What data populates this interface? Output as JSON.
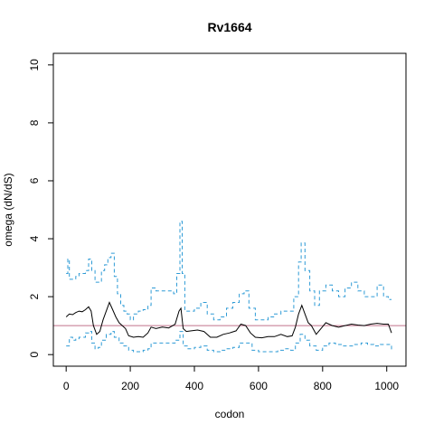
{
  "chart_data": {
    "type": "line",
    "title": "Rv1664",
    "xlabel": "codon",
    "ylabel": "omega (dN/dS)",
    "xlim": [
      -40,
      1060
    ],
    "ylim": [
      -0.4,
      10.4
    ],
    "xticks": [
      0,
      200,
      400,
      600,
      800,
      1000
    ],
    "yticks": [
      0,
      2,
      4,
      6,
      8,
      10
    ],
    "reference_line": {
      "y": 1,
      "color": "#c0708a"
    },
    "series": [
      {
        "role": "estimate",
        "color": "#000000",
        "dash": "solid",
        "points": [
          [
            0,
            1.3
          ],
          [
            10,
            1.4
          ],
          [
            20,
            1.38
          ],
          [
            30,
            1.45
          ],
          [
            40,
            1.5
          ],
          [
            50,
            1.48
          ],
          [
            60,
            1.55
          ],
          [
            70,
            1.65
          ],
          [
            78,
            1.5
          ],
          [
            85,
            1.0
          ],
          [
            95,
            0.7
          ],
          [
            105,
            0.8
          ],
          [
            115,
            1.2
          ],
          [
            125,
            1.5
          ],
          [
            135,
            1.8
          ],
          [
            145,
            1.55
          ],
          [
            155,
            1.3
          ],
          [
            165,
            1.1
          ],
          [
            175,
            1.0
          ],
          [
            185,
            0.9
          ],
          [
            195,
            0.65
          ],
          [
            210,
            0.6
          ],
          [
            225,
            0.62
          ],
          [
            240,
            0.6
          ],
          [
            255,
            0.75
          ],
          [
            265,
            0.95
          ],
          [
            280,
            0.9
          ],
          [
            300,
            0.95
          ],
          [
            320,
            0.92
          ],
          [
            340,
            1.05
          ],
          [
            352,
            1.5
          ],
          [
            358,
            1.6
          ],
          [
            365,
            0.9
          ],
          [
            375,
            0.8
          ],
          [
            390,
            0.82
          ],
          [
            410,
            0.85
          ],
          [
            430,
            0.8
          ],
          [
            450,
            0.6
          ],
          [
            470,
            0.6
          ],
          [
            490,
            0.7
          ],
          [
            510,
            0.75
          ],
          [
            530,
            0.82
          ],
          [
            545,
            1.05
          ],
          [
            560,
            1.0
          ],
          [
            575,
            0.75
          ],
          [
            590,
            0.6
          ],
          [
            610,
            0.58
          ],
          [
            630,
            0.62
          ],
          [
            650,
            0.62
          ],
          [
            670,
            0.7
          ],
          [
            690,
            0.62
          ],
          [
            705,
            0.65
          ],
          [
            715,
            0.95
          ],
          [
            725,
            1.4
          ],
          [
            735,
            1.7
          ],
          [
            745,
            1.4
          ],
          [
            755,
            1.1
          ],
          [
            765,
            1.0
          ],
          [
            780,
            0.7
          ],
          [
            795,
            0.9
          ],
          [
            810,
            1.1
          ],
          [
            830,
            1.0
          ],
          [
            850,
            0.95
          ],
          [
            870,
            1.0
          ],
          [
            890,
            1.05
          ],
          [
            910,
            1.02
          ],
          [
            930,
            1.0
          ],
          [
            950,
            1.05
          ],
          [
            970,
            1.08
          ],
          [
            990,
            1.05
          ],
          [
            1005,
            1.05
          ],
          [
            1015,
            0.75
          ]
        ]
      },
      {
        "role": "upper bound",
        "color": "#2e9bd6",
        "dash": "dashed",
        "points": [
          [
            0,
            2.8
          ],
          [
            5,
            3.3
          ],
          [
            10,
            2.6
          ],
          [
            20,
            2.6
          ],
          [
            30,
            2.7
          ],
          [
            40,
            2.8
          ],
          [
            50,
            2.8
          ],
          [
            60,
            2.9
          ],
          [
            70,
            3.3
          ],
          [
            80,
            2.9
          ],
          [
            90,
            2.5
          ],
          [
            100,
            2.5
          ],
          [
            110,
            2.9
          ],
          [
            120,
            3.1
          ],
          [
            130,
            3.35
          ],
          [
            140,
            3.5
          ],
          [
            150,
            2.7
          ],
          [
            160,
            2.1
          ],
          [
            170,
            1.7
          ],
          [
            180,
            1.5
          ],
          [
            190,
            1.4
          ],
          [
            200,
            1.2
          ],
          [
            210,
            1.4
          ],
          [
            225,
            1.5
          ],
          [
            240,
            1.55
          ],
          [
            255,
            1.7
          ],
          [
            265,
            2.3
          ],
          [
            280,
            2.2
          ],
          [
            300,
            2.2
          ],
          [
            320,
            2.2
          ],
          [
            335,
            2.1
          ],
          [
            345,
            2.8
          ],
          [
            355,
            4.6
          ],
          [
            362,
            2.8
          ],
          [
            370,
            1.5
          ],
          [
            385,
            1.5
          ],
          [
            400,
            1.6
          ],
          [
            420,
            1.8
          ],
          [
            440,
            1.4
          ],
          [
            460,
            1.2
          ],
          [
            480,
            1.3
          ],
          [
            500,
            1.6
          ],
          [
            520,
            1.8
          ],
          [
            540,
            2.1
          ],
          [
            555,
            2.2
          ],
          [
            570,
            1.6
          ],
          [
            590,
            1.2
          ],
          [
            610,
            1.2
          ],
          [
            630,
            1.3
          ],
          [
            650,
            1.4
          ],
          [
            670,
            1.5
          ],
          [
            690,
            1.5
          ],
          [
            710,
            2.0
          ],
          [
            725,
            3.2
          ],
          [
            733,
            3.85
          ],
          [
            745,
            2.9
          ],
          [
            760,
            2.2
          ],
          [
            775,
            1.7
          ],
          [
            790,
            2.2
          ],
          [
            810,
            2.4
          ],
          [
            830,
            2.2
          ],
          [
            850,
            2.0
          ],
          [
            870,
            2.3
          ],
          [
            890,
            2.5
          ],
          [
            910,
            2.2
          ],
          [
            930,
            2.0
          ],
          [
            950,
            2.0
          ],
          [
            970,
            2.4
          ],
          [
            990,
            2.0
          ],
          [
            1005,
            1.9
          ],
          [
            1015,
            1.9
          ]
        ]
      },
      {
        "role": "lower bound",
        "color": "#2e9bd6",
        "dash": "dashed",
        "points": [
          [
            0,
            0.3
          ],
          [
            10,
            0.6
          ],
          [
            20,
            0.5
          ],
          [
            30,
            0.55
          ],
          [
            40,
            0.6
          ],
          [
            50,
            0.6
          ],
          [
            60,
            0.75
          ],
          [
            70,
            0.8
          ],
          [
            80,
            0.4
          ],
          [
            90,
            0.2
          ],
          [
            100,
            0.25
          ],
          [
            110,
            0.5
          ],
          [
            125,
            0.7
          ],
          [
            140,
            0.8
          ],
          [
            150,
            0.6
          ],
          [
            165,
            0.4
          ],
          [
            180,
            0.3
          ],
          [
            195,
            0.15
          ],
          [
            210,
            0.1
          ],
          [
            225,
            0.1
          ],
          [
            240,
            0.15
          ],
          [
            255,
            0.2
          ],
          [
            265,
            0.4
          ],
          [
            285,
            0.4
          ],
          [
            305,
            0.4
          ],
          [
            325,
            0.4
          ],
          [
            340,
            0.5
          ],
          [
            355,
            0.8
          ],
          [
            365,
            0.3
          ],
          [
            380,
            0.2
          ],
          [
            400,
            0.25
          ],
          [
            420,
            0.3
          ],
          [
            440,
            0.15
          ],
          [
            460,
            0.1
          ],
          [
            480,
            0.15
          ],
          [
            500,
            0.2
          ],
          [
            520,
            0.25
          ],
          [
            540,
            0.4
          ],
          [
            560,
            0.4
          ],
          [
            580,
            0.15
          ],
          [
            600,
            0.1
          ],
          [
            620,
            0.1
          ],
          [
            640,
            0.1
          ],
          [
            660,
            0.15
          ],
          [
            680,
            0.2
          ],
          [
            700,
            0.15
          ],
          [
            715,
            0.4
          ],
          [
            730,
            0.7
          ],
          [
            745,
            0.5
          ],
          [
            760,
            0.3
          ],
          [
            780,
            0.15
          ],
          [
            800,
            0.3
          ],
          [
            820,
            0.4
          ],
          [
            840,
            0.35
          ],
          [
            860,
            0.3
          ],
          [
            880,
            0.3
          ],
          [
            900,
            0.35
          ],
          [
            920,
            0.4
          ],
          [
            940,
            0.35
          ],
          [
            960,
            0.3
          ],
          [
            980,
            0.35
          ],
          [
            1000,
            0.35
          ],
          [
            1015,
            0.1
          ]
        ]
      }
    ]
  }
}
